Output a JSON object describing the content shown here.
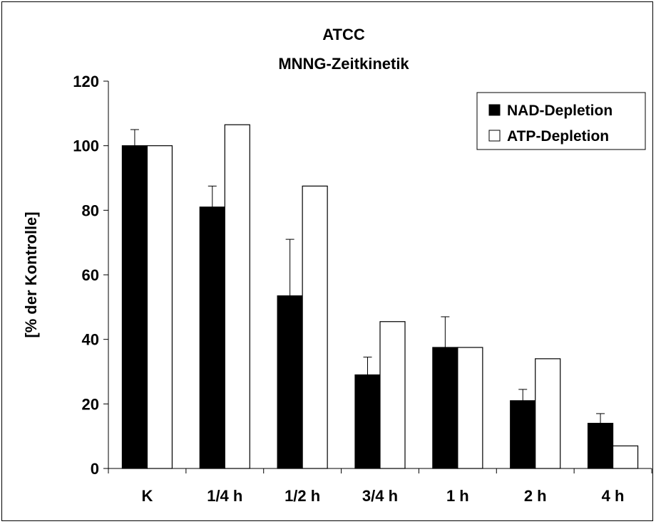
{
  "chart_data": {
    "type": "bar",
    "title": "ATCC",
    "subtitle": "MNNG-Zeitkinetik",
    "xlabel": "",
    "ylabel": "[% der Kontrolle]",
    "ylim": [
      0,
      120
    ],
    "yticks": [
      0,
      20,
      40,
      60,
      80,
      100,
      120
    ],
    "categories": [
      "K",
      "1/4 h",
      "1/2 h",
      "3/4 h",
      "1 h",
      "2 h",
      "4 h"
    ],
    "series": [
      {
        "name": "NAD-Depletion",
        "color": "#000000",
        "values": [
          100,
          81,
          53.5,
          29,
          37.5,
          21,
          14
        ],
        "error": [
          5,
          6.5,
          17.5,
          5.5,
          9.5,
          3.5,
          3
        ]
      },
      {
        "name": "ATP-Depletion",
        "color": "#ffffff",
        "values": [
          100,
          106.5,
          87.5,
          45.5,
          37.5,
          34,
          7
        ],
        "error": null
      }
    ],
    "grid": false,
    "legend_position": "top-right"
  }
}
